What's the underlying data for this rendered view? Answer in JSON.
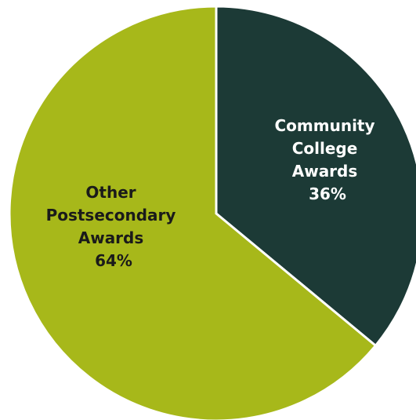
{
  "chart_data": {
    "type": "pie",
    "slices": [
      {
        "label_lines": [
          "Community",
          "College",
          "Awards"
        ],
        "value": 36,
        "value_label": "36%",
        "color": "#1c3a36",
        "text_color": "#ffffff"
      },
      {
        "label_lines": [
          "Other",
          "Postsecondary",
          "Awards"
        ],
        "value": 64,
        "value_label": "64%",
        "color": "#a7b81a",
        "text_color": "#1a1a1a"
      }
    ],
    "start_angle_deg": 0,
    "direction": "clockwise",
    "legend": "none"
  }
}
